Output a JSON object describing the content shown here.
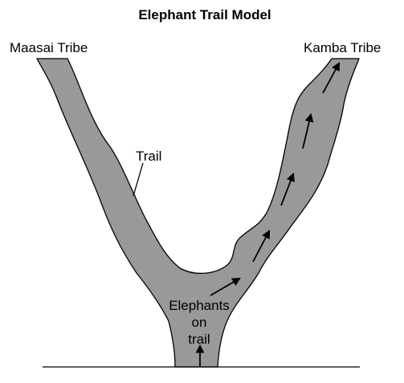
{
  "title": "Elephant Trail Model",
  "labels": {
    "left_tribe": "Maasai Tribe",
    "right_tribe": "Kamba Tribe",
    "trail": "Trail",
    "elephants_line1": "Elephants",
    "elephants_line2": "on",
    "elephants_line3": "trail"
  },
  "colors": {
    "trail_fill": "#999999",
    "outline": "#000000",
    "background": "#ffffff"
  }
}
